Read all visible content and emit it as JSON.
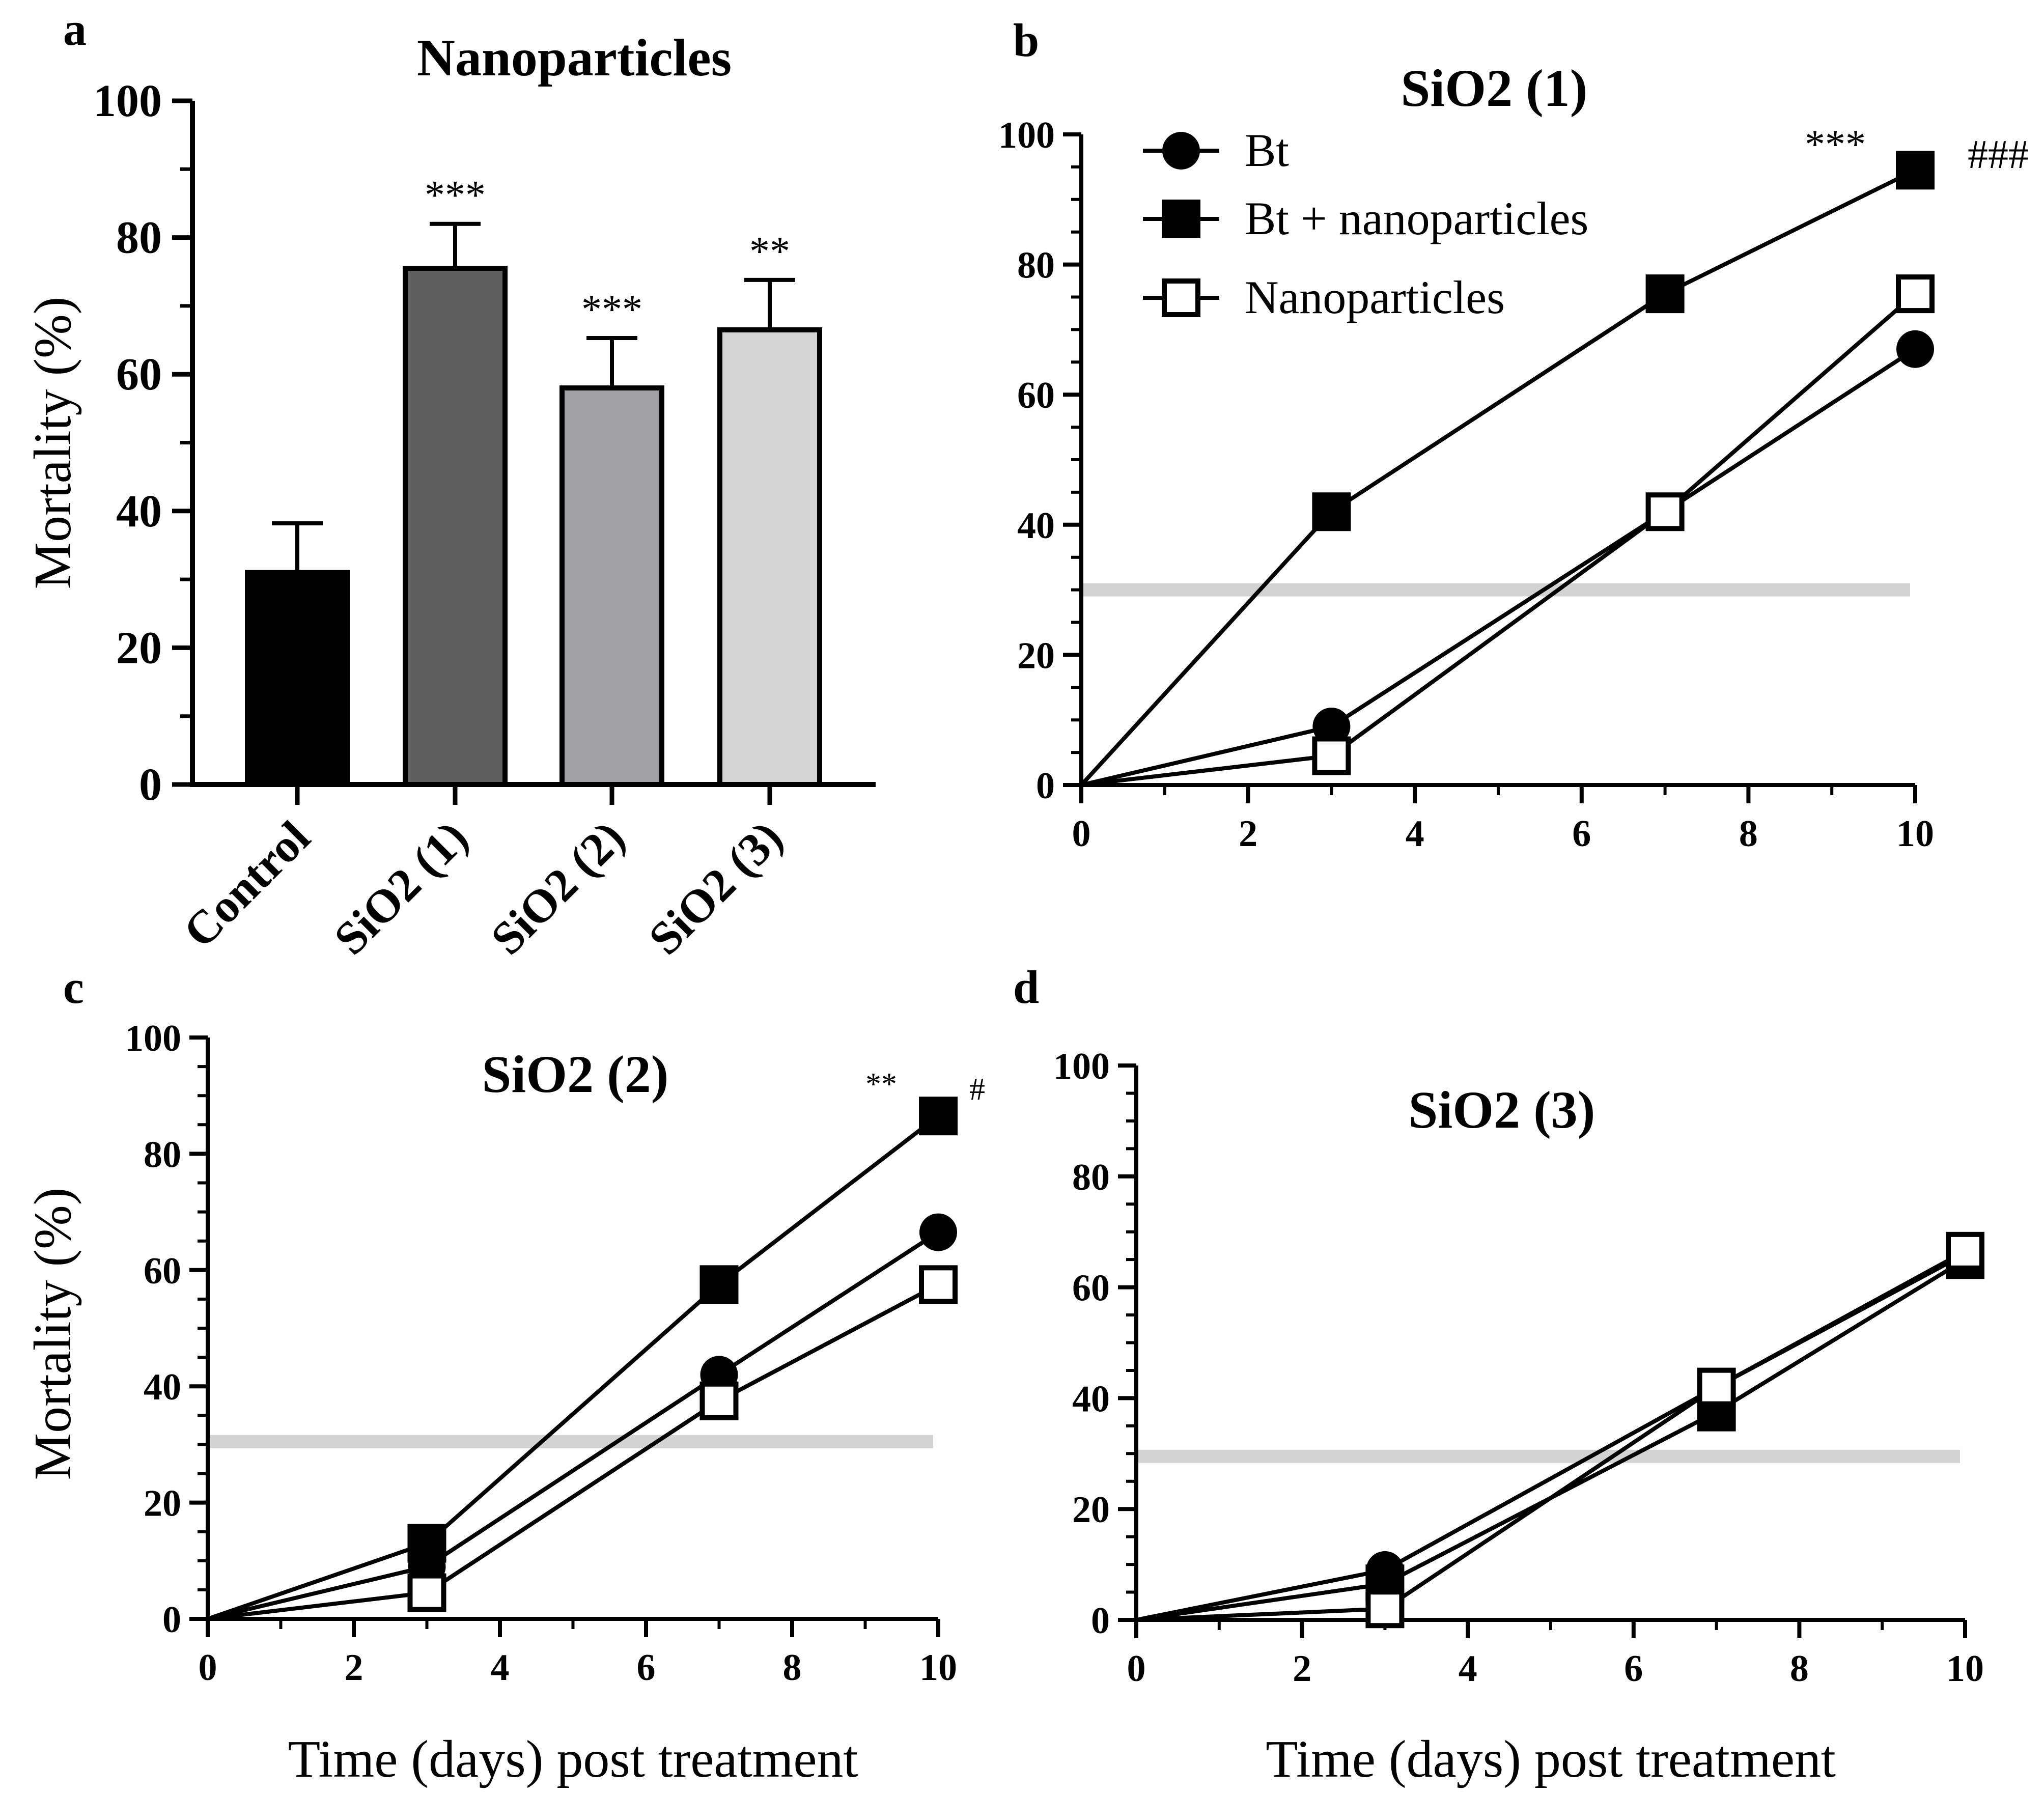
{
  "chart_data": [
    {
      "panel": "a",
      "type": "bar",
      "title": "Nanoparticles",
      "ylabel": "Mortality (%)",
      "xlabel": "",
      "ylim": [
        0,
        100
      ],
      "yticks": [
        0,
        20,
        40,
        60,
        80,
        100
      ],
      "yticklabels": [
        "0",
        "20",
        "40",
        "60",
        "80",
        "100"
      ],
      "categories": [
        "Control",
        "SiO2 (1)",
        "SiO2 (2)",
        "SiO2 (3)"
      ],
      "values": [
        31,
        75.5,
        58,
        66.5
      ],
      "errors": [
        7.2,
        6.5,
        7.3,
        7.3
      ],
      "colors": [
        "#000000",
        "#5f5f5f",
        "#a3a3a7",
        "#d4d4d4"
      ],
      "significance": [
        "",
        "***",
        "***",
        "**"
      ]
    },
    {
      "panel": "b",
      "type": "line",
      "title": "SiO2 (1)",
      "xlabel": "",
      "ylabel": "",
      "xlim": [
        0,
        10
      ],
      "ylim": [
        0,
        100
      ],
      "xticks": [
        0,
        2,
        4,
        6,
        8,
        10
      ],
      "xticklabels": [
        "0",
        "2",
        "4",
        "6",
        "8",
        "10"
      ],
      "yticks": [
        0,
        20,
        40,
        60,
        80,
        100
      ],
      "yticklabels": [
        "0",
        "20",
        "40",
        "60",
        "80",
        "100"
      ],
      "x": [
        0,
        3,
        7,
        10
      ],
      "series": [
        {
          "name": "Bt",
          "marker": "circle",
          "values": [
            0,
            9,
            42,
            67
          ]
        },
        {
          "name": "Bt + nanoparticles",
          "marker": "square",
          "values": [
            0,
            42,
            75.5,
            94.5
          ]
        },
        {
          "name": "Nanoparticles",
          "marker": "open-square",
          "values": [
            0,
            4.5,
            42,
            75.5
          ]
        }
      ],
      "reference_line": 30,
      "annotations": [
        "***",
        "###"
      ],
      "legend": [
        "Bt",
        "Bt + nanoparticles",
        "Nanoparticles"
      ]
    },
    {
      "panel": "c",
      "type": "line",
      "title": "SiO2 (2)",
      "xlabel": "Time (days) post treatment",
      "ylabel": "Mortality (%)",
      "xlim": [
        0,
        10
      ],
      "ylim": [
        0,
        100
      ],
      "xticks": [
        0,
        2,
        4,
        6,
        8,
        10
      ],
      "xticklabels": [
        "0",
        "2",
        "4",
        "6",
        "8",
        "10"
      ],
      "yticks": [
        0,
        20,
        40,
        60,
        80,
        100
      ],
      "yticklabels": [
        "0",
        "20",
        "40",
        "60",
        "80",
        "100"
      ],
      "x": [
        0,
        3,
        7,
        10
      ],
      "series": [
        {
          "name": "Bt",
          "marker": "circle",
          "values": [
            0,
            9,
            42,
            66.5
          ]
        },
        {
          "name": "Bt + nanoparticles",
          "marker": "square",
          "values": [
            0,
            13,
            57.5,
            86.5
          ]
        },
        {
          "name": "Nanoparticles",
          "marker": "open-square",
          "values": [
            0,
            4.5,
            37.5,
            57.5
          ]
        }
      ],
      "reference_line": 30.5,
      "annotations": [
        "**",
        "#"
      ]
    },
    {
      "panel": "d",
      "type": "line",
      "title": "SiO2 (3)",
      "xlabel": "Time (days) post treatment",
      "ylabel": "",
      "xlim": [
        0,
        10
      ],
      "ylim": [
        0,
        100
      ],
      "xticks": [
        0,
        2,
        4,
        6,
        8,
        10
      ],
      "xticklabels": [
        "0",
        "2",
        "4",
        "6",
        "8",
        "10"
      ],
      "yticks": [
        0,
        20,
        40,
        60,
        80,
        100
      ],
      "yticklabels": [
        "0",
        "20",
        "40",
        "60",
        "80",
        "100"
      ],
      "x": [
        0,
        3,
        7,
        10
      ],
      "series": [
        {
          "name": "Bt",
          "marker": "circle",
          "values": [
            0,
            9,
            42,
            66
          ]
        },
        {
          "name": "Bt + nanoparticles",
          "marker": "square",
          "values": [
            0,
            6.5,
            37.5,
            65
          ]
        },
        {
          "name": "Nanoparticles",
          "marker": "open-square",
          "values": [
            0,
            2,
            42,
            66.5
          ]
        }
      ],
      "reference_line": 29.5,
      "annotations": []
    }
  ]
}
